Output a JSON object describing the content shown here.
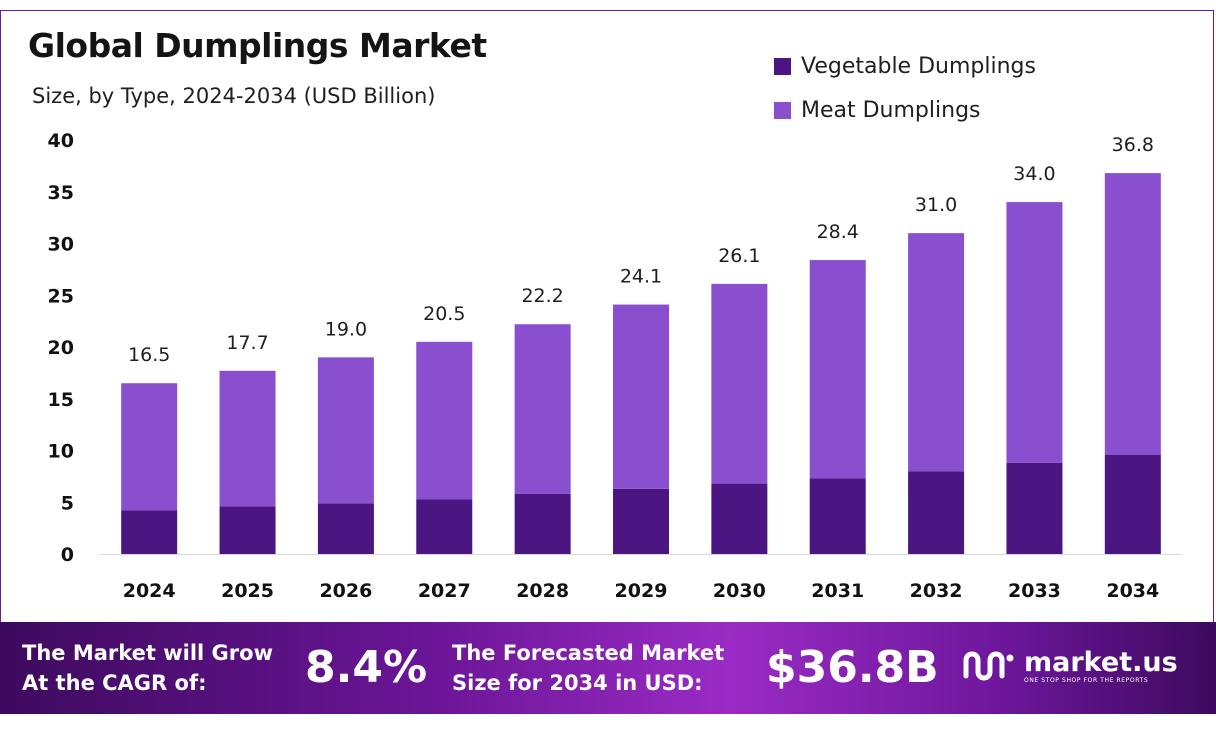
{
  "header": {
    "title": "Global Dumplings Market",
    "subtitle": "Size, by Type, 2024-2034 (USD Billion)"
  },
  "legend": [
    {
      "label": "Vegetable Dumplings",
      "color": "#4b1682"
    },
    {
      "label": "Meat Dumplings",
      "color": "#8a4fcf"
    }
  ],
  "chart_data": {
    "type": "bar",
    "stacked": true,
    "categories": [
      "2024",
      "2025",
      "2026",
      "2027",
      "2028",
      "2029",
      "2030",
      "2031",
      "2032",
      "2033",
      "2034"
    ],
    "series": [
      {
        "name": "Vegetable Dumplings",
        "color": "#4b1682",
        "values": [
          4.2,
          4.6,
          4.9,
          5.3,
          5.8,
          6.3,
          6.8,
          7.3,
          8.0,
          8.8,
          9.6
        ]
      },
      {
        "name": "Meat Dumplings",
        "color": "#8a4fcf",
        "values": [
          12.3,
          13.1,
          14.1,
          15.2,
          16.4,
          17.8,
          19.3,
          21.1,
          23.0,
          25.2,
          27.2
        ]
      }
    ],
    "totals": [
      "16.5",
      "17.7",
      "19.0",
      "20.5",
      "22.2",
      "24.1",
      "26.1",
      "28.4",
      "31.0",
      "34.0",
      "36.8"
    ],
    "ylim": [
      0,
      40
    ],
    "yticks": [
      0,
      5,
      10,
      15,
      20,
      25,
      30,
      35,
      40
    ],
    "grid": false,
    "legend_position": "top-right"
  },
  "footer": {
    "cagr_label_line1": "The Market will Grow",
    "cagr_label_line2": "At the CAGR of:",
    "cagr_value": "8.4%",
    "forecast_label_line1": "The Forecasted Market",
    "forecast_label_line2": "Size for 2034 in USD:",
    "forecast_value": "$36.8B",
    "brand_name": "market.us",
    "brand_tagline": "ONE STOP SHOP FOR THE REPORTS"
  }
}
